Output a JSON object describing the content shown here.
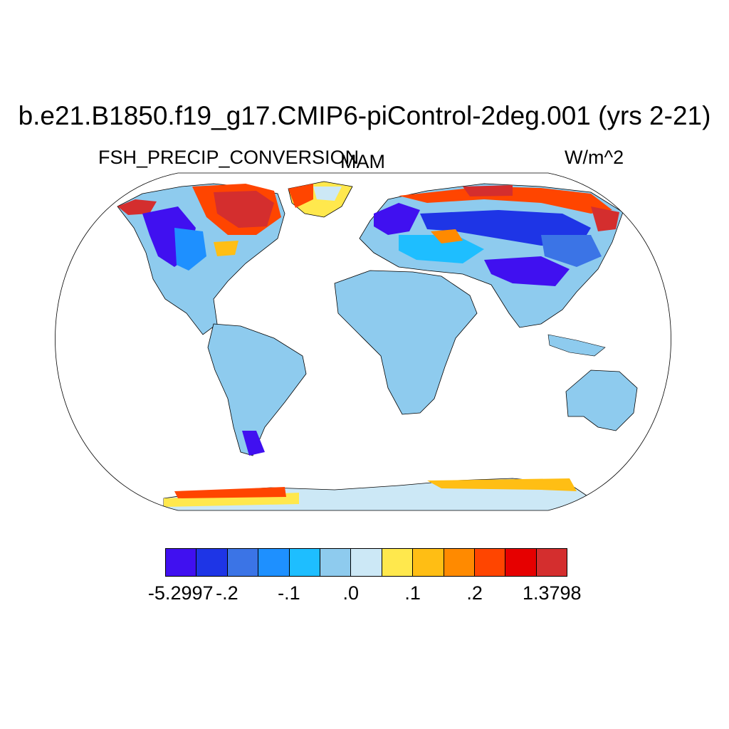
{
  "title": "b.e21.B1850.f19_g17.CMIP6-piControl-2deg.001 (yrs 2-21)",
  "variable": "FSH_PRECIP_CONVERSION",
  "season": "MAM",
  "units": "W/m^2",
  "colorbar": {
    "colors": [
      "#4010f0",
      "#1e35e6",
      "#3b74e6",
      "#1e90ff",
      "#1ebeff",
      "#8ecbee",
      "#cce8f6",
      "#ffe84d",
      "#ffbe14",
      "#ff8a00",
      "#ff4500",
      "#e60000",
      "#d42e2e"
    ],
    "labels": [
      "-5.2997",
      "-.2",
      "-.1",
      ".0",
      ".1",
      ".2",
      "1.3798"
    ]
  },
  "map_legend": {
    "ocean": "#ffffff",
    "default_land": "#8ecbee",
    "antarctica_interior": "#cce8f6"
  }
}
